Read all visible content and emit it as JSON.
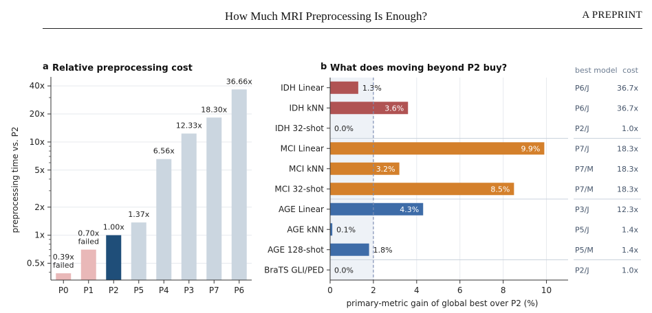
{
  "header": {
    "title": "How Much MRI Preprocessing Is Enough?",
    "right": "A PREPRINT"
  },
  "chart_data": [
    {
      "type": "bar",
      "panel": "a",
      "title": "Relative preprocessing cost",
      "ylabel": "preprocessing time vs. P2",
      "xlabel": "",
      "yscale": "log",
      "ylim": [
        0.33,
        50
      ],
      "yticks": [
        0.5,
        1,
        2,
        5,
        10,
        20,
        40
      ],
      "ytick_labels": [
        "0.5x",
        "1x",
        "2x",
        "5x",
        "10x",
        "20x",
        "40x"
      ],
      "categories": [
        "P0",
        "P1",
        "P2",
        "P5",
        "P4",
        "P3",
        "P7",
        "P6"
      ],
      "values": [
        0.39,
        0.7,
        1.0,
        1.37,
        6.56,
        12.33,
        18.3,
        36.66
      ],
      "labels": [
        "0.39x\nfailed",
        "0.70x\nfailed",
        "1.00x",
        "1.37x",
        "6.56x",
        "12.33x",
        "18.30x",
        "36.66x"
      ],
      "colors": [
        "#e9b8b8",
        "#e9b8b8",
        "#1f4e79",
        "#cbd6e0",
        "#cbd6e0",
        "#cbd6e0",
        "#cbd6e0",
        "#cbd6e0"
      ]
    },
    {
      "type": "bar",
      "orientation": "horizontal",
      "panel": "b",
      "title": "What does moving beyond P2 buy?",
      "xlabel": "primary-metric gain of global best over P2 (%)",
      "ylabel": "",
      "xlim": [
        0,
        11
      ],
      "xticks": [
        0,
        2,
        4,
        6,
        8,
        10
      ],
      "reference_line": 2,
      "categories": [
        "IDH Linear",
        "IDH kNN",
        "IDH 32-shot",
        "MCI Linear",
        "MCI kNN",
        "MCI 32-shot",
        "AGE Linear",
        "AGE kNN",
        "AGE 128-shot",
        "BraTS GLI/PED"
      ],
      "values": [
        1.3,
        3.6,
        0.0,
        9.9,
        3.2,
        8.5,
        4.3,
        0.1,
        1.8,
        0.0
      ],
      "labels": [
        "1.3%",
        "3.6%",
        "0.0%",
        "9.9%",
        "3.2%",
        "8.5%",
        "4.3%",
        "0.1%",
        "1.8%",
        "0.0%"
      ],
      "colors": [
        "#b05353",
        "#b05353",
        "#b05353",
        "#d4802b",
        "#d4802b",
        "#d4802b",
        "#3e6ca8",
        "#3e6ca8",
        "#3e6ca8",
        "#3e6ca8"
      ],
      "side_table": {
        "header_model": "best model",
        "header_cost": "cost",
        "models": [
          "P6/J",
          "P6/J",
          "P2/J",
          "P7/J",
          "P7/M",
          "P7/M",
          "P3/J",
          "P5/J",
          "P5/M",
          "P2/J"
        ],
        "costs": [
          "36.7x",
          "36.7x",
          "1.0x",
          "18.3x",
          "18.3x",
          "18.3x",
          "12.3x",
          "1.4x",
          "1.4x",
          "1.0x"
        ]
      }
    }
  ],
  "panel_letters": {
    "a": "a",
    "b": "b"
  }
}
